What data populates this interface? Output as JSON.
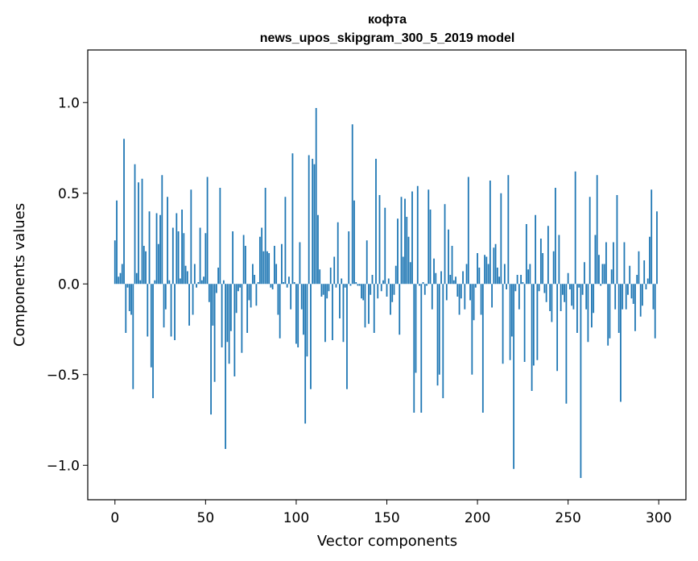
{
  "chart_data": {
    "type": "bar",
    "title_line1": "кофта",
    "title_line2": "news_upos_skipgram_300_5_2019 model",
    "xlabel": "Vector components",
    "ylabel": "Components values",
    "xlim": [
      -15,
      315
    ],
    "ylim": [
      -1.19,
      1.29
    ],
    "xticks": [
      0,
      50,
      100,
      150,
      200,
      250,
      300
    ],
    "xtick_labels": [
      "0",
      "50",
      "100",
      "150",
      "200",
      "250",
      "300"
    ],
    "yticks": [
      -1.0,
      -0.5,
      0.0,
      0.5,
      1.0
    ],
    "ytick_labels": [
      "−1.0",
      "−0.5",
      "0.0",
      "0.5",
      "1.0"
    ],
    "bar_color": "#1f77b4",
    "values": [
      0.24,
      0.46,
      0.04,
      0.06,
      0.11,
      0.8,
      -0.27,
      -0.02,
      -0.15,
      -0.17,
      -0.58,
      0.66,
      0.06,
      0.56,
      0.02,
      0.58,
      0.21,
      0.18,
      -0.29,
      0.4,
      -0.46,
      -0.63,
      0.02,
      0.39,
      0.22,
      0.38,
      0.6,
      -0.24,
      -0.14,
      0.48,
      0.02,
      -0.29,
      0.31,
      -0.31,
      0.39,
      0.29,
      0.03,
      0.41,
      0.28,
      0.1,
      0.07,
      -0.23,
      0.52,
      -0.17,
      0.11,
      -0.02,
      0.01,
      0.31,
      0.02,
      0.04,
      0.28,
      0.59,
      -0.1,
      -0.72,
      -0.23,
      -0.54,
      -0.05,
      0.09,
      0.53,
      -0.35,
      0.02,
      -0.91,
      -0.32,
      -0.44,
      -0.26,
      0.29,
      -0.51,
      -0.16,
      -0.04,
      -0.02,
      -0.38,
      0.27,
      0.21,
      -0.27,
      -0.09,
      -0.13,
      0.11,
      0.05,
      -0.12,
      0.01,
      0.26,
      0.31,
      0.18,
      0.53,
      0.18,
      0.17,
      -0.02,
      -0.03,
      0.21,
      0.11,
      -0.17,
      -0.3,
      0.22,
      0.01,
      0.48,
      -0.02,
      0.04,
      -0.14,
      0.72,
      0.01,
      -0.33,
      -0.35,
      0.23,
      -0.14,
      -0.28,
      -0.77,
      -0.4,
      0.71,
      -0.58,
      0.69,
      0.66,
      0.97,
      0.38,
      0.08,
      -0.07,
      -0.06,
      -0.32,
      -0.08,
      -0.04,
      0.09,
      -0.31,
      0.15,
      -0.02,
      0.34,
      -0.19,
      0.03,
      -0.32,
      -0.02,
      -0.58,
      0.29,
      -0.01,
      0.88,
      0.46,
      0.01,
      -0.01,
      -0.01,
      -0.08,
      -0.09,
      -0.24,
      0.24,
      -0.22,
      -0.06,
      0.05,
      -0.27,
      0.69,
      -0.08,
      0.49,
      -0.04,
      0.02,
      0.42,
      -0.07,
      0.03,
      -0.17,
      -0.1,
      -0.06,
      0.1,
      0.36,
      -0.28,
      0.48,
      0.15,
      0.47,
      0.37,
      0.26,
      0.12,
      0.51,
      -0.71,
      -0.49,
      0.54,
      -0.01,
      -0.71,
      0.01,
      -0.06,
      -0.01,
      0.52,
      0.41,
      -0.14,
      0.14,
      0.06,
      -0.56,
      -0.5,
      0.07,
      -0.63,
      0.44,
      -0.09,
      0.3,
      0.05,
      0.21,
      0.02,
      0.04,
      -0.07,
      -0.17,
      -0.08,
      0.07,
      -0.14,
      0.11,
      0.59,
      -0.09,
      -0.5,
      -0.2,
      -0.02,
      0.17,
      0.09,
      -0.17,
      -0.71,
      0.16,
      0.15,
      0.11,
      0.57,
      -0.13,
      0.2,
      0.22,
      0.09,
      0.04,
      0.5,
      -0.44,
      0.11,
      -0.03,
      0.6,
      -0.42,
      -0.29,
      -1.02,
      -0.04,
      0.05,
      -0.14,
      0.05,
      0.01,
      -0.43,
      0.33,
      0.08,
      0.11,
      -0.59,
      -0.45,
      0.38,
      -0.42,
      -0.04,
      0.25,
      0.17,
      -0.05,
      -0.1,
      0.32,
      -0.15,
      -0.21,
      0.18,
      0.53,
      -0.48,
      0.27,
      -0.15,
      -0.06,
      -0.1,
      -0.66,
      0.06,
      -0.03,
      -0.12,
      -0.14,
      0.62,
      -0.27,
      -0.02,
      -1.07,
      -0.06,
      0.12,
      -0.14,
      -0.32,
      0.48,
      -0.24,
      -0.16,
      0.27,
      0.6,
      0.16,
      -0.01,
      0.11,
      0.11,
      0.23,
      -0.34,
      -0.3,
      0.08,
      0.23,
      -0.14,
      0.49,
      -0.27,
      -0.65,
      -0.14,
      0.23,
      -0.14,
      -0.06,
      0.1,
      -0.08,
      -0.11,
      -0.26,
      0.05,
      0.18,
      -0.18,
      -0.12,
      0.13,
      -0.03,
      0.03,
      0.26,
      0.52,
      -0.14,
      -0.3,
      0.4
    ]
  }
}
